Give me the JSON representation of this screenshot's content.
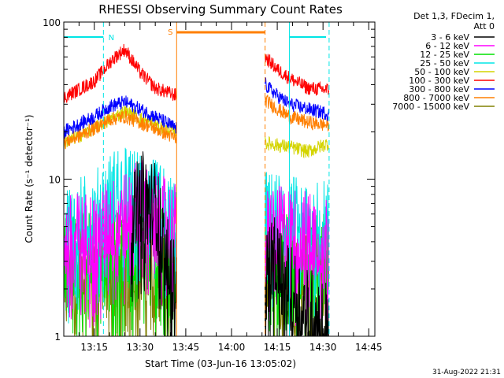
{
  "chart_data": {
    "type": "line",
    "title": "RHESSI Observing Summary Count Rates",
    "xlabel": "Start Time (03-Jun-16 13:05:02)",
    "ylabel": "Count Rate (s⁻¹ detector⁻¹)",
    "yscale": "log",
    "ylim": [
      1,
      100
    ],
    "y_ticks": [
      {
        "value": 1,
        "label": "1"
      },
      {
        "value": 10,
        "label": "10"
      },
      {
        "value": 100,
        "label": "100"
      }
    ],
    "xlim_minutes": [
      0,
      102
    ],
    "x_ticks": [
      {
        "minute": 10,
        "label": "13:15"
      },
      {
        "minute": 25,
        "label": "13:30"
      },
      {
        "minute": 40,
        "label": "13:45"
      },
      {
        "minute": 55,
        "label": "14:00"
      },
      {
        "minute": 70,
        "label": "14:15"
      },
      {
        "minute": 85,
        "label": "14:30"
      },
      {
        "minute": 100,
        "label": "14:45"
      }
    ],
    "legend_header": [
      "Det 1,3, FDecim 1,",
      "Att 0"
    ],
    "legend_position": "right",
    "timestamp": "31-Aug-2022 21:31",
    "flags": [
      {
        "label": "N",
        "color": "#00e5e5",
        "segments": [
          [
            0,
            13
          ],
          [
            74,
            86
          ]
        ]
      },
      {
        "label": "S",
        "color": "#ff7f00",
        "segments": [
          [
            37,
            66
          ]
        ]
      }
    ],
    "vlines": [
      {
        "minute": 13,
        "color": "#00e5e5",
        "style": "dashed"
      },
      {
        "minute": 37,
        "color": "#ff7f00",
        "style": "solid"
      },
      {
        "minute": 66,
        "color": "#ff7f00",
        "style": "dashed"
      },
      {
        "minute": 74,
        "color": "#00e5e5",
        "style": "solid"
      },
      {
        "minute": 87,
        "color": "#00e5e5",
        "style": "dashed"
      }
    ],
    "gap_minutes": [
      38,
      66
    ],
    "series": [
      {
        "name": "3 - 6 keV",
        "color": "#000000",
        "segA": [
          [
            22,
            6
          ],
          [
            26,
            8
          ],
          [
            30,
            7
          ],
          [
            34,
            3
          ],
          [
            37,
            2
          ]
        ],
        "segB": [
          [
            66,
            3
          ],
          [
            70,
            3
          ],
          [
            74,
            2
          ],
          [
            80,
            1.5
          ],
          [
            87,
            1.2
          ]
        ]
      },
      {
        "name": "6 - 12 keV",
        "color": "#ff00ff",
        "segA": [
          [
            0,
            4.2
          ],
          [
            10,
            4.6
          ],
          [
            20,
            6
          ],
          [
            25,
            7.5
          ],
          [
            30,
            6
          ],
          [
            37,
            5
          ]
        ],
        "segB": [
          [
            66,
            5
          ],
          [
            74,
            4.8
          ],
          [
            80,
            4.5
          ],
          [
            87,
            4.5
          ]
        ]
      },
      {
        "name": "12 - 25 keV",
        "color": "#00e000",
        "segA": [
          [
            0,
            3.3
          ],
          [
            15,
            3.4
          ],
          [
            25,
            3.8
          ],
          [
            37,
            3.4
          ]
        ],
        "segB": [
          [
            66,
            3.3
          ],
          [
            80,
            3.2
          ],
          [
            87,
            3.2
          ]
        ]
      },
      {
        "name": "25 - 50 keV",
        "color": "#00e5e5",
        "segA": [
          [
            0,
            5
          ],
          [
            10,
            6
          ],
          [
            18,
            9
          ],
          [
            25,
            8
          ],
          [
            30,
            7
          ],
          [
            37,
            5.5
          ]
        ],
        "segB": [
          [
            66,
            6
          ],
          [
            74,
            5.8
          ],
          [
            80,
            5.5
          ],
          [
            87,
            5.2
          ]
        ]
      },
      {
        "name": "50 - 100 keV",
        "color": "#d4d400",
        "segA": [
          [
            0,
            17
          ],
          [
            10,
            21
          ],
          [
            20,
            27
          ],
          [
            30,
            22
          ],
          [
            37,
            20
          ]
        ],
        "segB": [
          [
            66,
            17
          ],
          [
            74,
            16
          ],
          [
            80,
            15
          ],
          [
            87,
            17
          ]
        ]
      },
      {
        "name": "100 - 300 keV",
        "color": "#ff0000",
        "segA": [
          [
            0,
            33
          ],
          [
            10,
            42
          ],
          [
            16,
            58
          ],
          [
            20,
            67
          ],
          [
            25,
            48
          ],
          [
            30,
            38
          ],
          [
            37,
            34
          ]
        ],
        "segB": [
          [
            66,
            60
          ],
          [
            70,
            50
          ],
          [
            74,
            44
          ],
          [
            80,
            38
          ],
          [
            87,
            37
          ]
        ]
      },
      {
        "name": "300 - 800 keV",
        "color": "#0000ff",
        "segA": [
          [
            0,
            20
          ],
          [
            10,
            25
          ],
          [
            15,
            29
          ],
          [
            20,
            31
          ],
          [
            30,
            25
          ],
          [
            37,
            21
          ]
        ],
        "segB": [
          [
            66,
            40
          ],
          [
            70,
            34
          ],
          [
            74,
            30
          ],
          [
            80,
            28
          ],
          [
            87,
            26
          ]
        ]
      },
      {
        "name": "800 - 7000 keV",
        "color": "#ff7f00",
        "segA": [
          [
            0,
            17
          ],
          [
            10,
            21
          ],
          [
            15,
            24
          ],
          [
            20,
            25
          ],
          [
            30,
            21
          ],
          [
            37,
            18
          ]
        ],
        "segB": [
          [
            66,
            32
          ],
          [
            70,
            28
          ],
          [
            74,
            25
          ],
          [
            80,
            23
          ],
          [
            87,
            22
          ]
        ]
      },
      {
        "name": "7000 - 15000 keV",
        "color": "#808000",
        "segA": [
          [
            0,
            2.5
          ],
          [
            20,
            2.8
          ],
          [
            37,
            2.5
          ]
        ],
        "segB": [
          [
            66,
            2.5
          ],
          [
            80,
            2.5
          ],
          [
            87,
            2.3
          ]
        ]
      }
    ]
  }
}
